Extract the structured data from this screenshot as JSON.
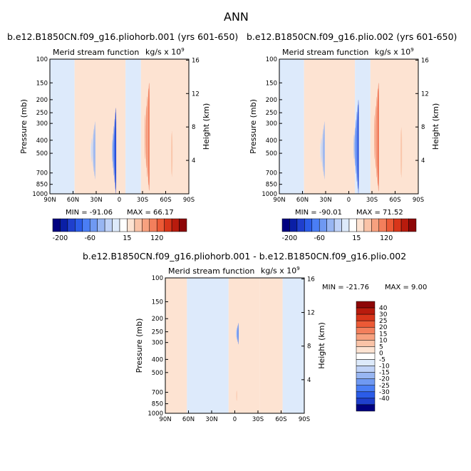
{
  "chart_data": [
    {
      "type": "heatmap",
      "panel": "top-left",
      "title": "b.e12.B1850CN.f09_g16.pliohorb.001 (yrs 601-650)",
      "variable": "Merid stream function",
      "units": "kg/s x 10",
      "units_exp": "9",
      "xlabel": "",
      "ylabel": "Pressure (mb)",
      "y2label": "Height (km)",
      "x_ticks": [
        "90N",
        "60N",
        "30N",
        "0",
        "30S",
        "60S",
        "90S"
      ],
      "y_ticks": [
        "100",
        "150",
        "200",
        "250",
        "300",
        "400",
        "500",
        "700",
        "850",
        "1000"
      ],
      "y2_ticks": [
        "16",
        "12",
        "8",
        "4"
      ],
      "min_label": "MIN = -91.06",
      "max_label": "MAX = 66.17",
      "min": -91.06,
      "max": 66.17,
      "cells": [
        {
          "lat": [
            5,
            16
          ],
          "p": [
            230,
            1000
          ],
          "level": -90
        },
        {
          "lat": [
            -38,
            -22
          ],
          "p": [
            150,
            950
          ],
          "level": 60
        },
        {
          "lat": [
            32,
            45
          ],
          "p": [
            290,
            780
          ],
          "level": -20
        },
        {
          "lat": [
            -68,
            -52
          ],
          "p": [
            340,
            750
          ],
          "level": 12
        }
      ]
    },
    {
      "type": "heatmap",
      "panel": "top-right",
      "title": "b.e12.B1850CN.f09_g16.plio.002 (yrs 601-650)",
      "variable": "Merid stream function",
      "units": "kg/s x 10",
      "units_exp": "9",
      "xlabel": "",
      "ylabel": "Pressure (mb)",
      "y2label": "Height (km)",
      "x_ticks": [
        "90N",
        "60N",
        "30N",
        "0",
        "30S",
        "60S",
        "90S"
      ],
      "y_ticks": [
        "100",
        "150",
        "200",
        "250",
        "300",
        "400",
        "500",
        "700",
        "850",
        "1000"
      ],
      "y2_ticks": [
        "16",
        "12",
        "8",
        "4"
      ],
      "min_label": "MIN = -90.01",
      "max_label": "MAX = 71.52",
      "min": -90.01,
      "max": 71.52,
      "cells": [
        {
          "lat": [
            -12,
            2
          ],
          "p": [
            200,
            1000
          ],
          "level": -90
        },
        {
          "lat": [
            -38,
            -22
          ],
          "p": [
            150,
            960
          ],
          "level": 70
        },
        {
          "lat": [
            32,
            45
          ],
          "p": [
            290,
            780
          ],
          "level": -20
        },
        {
          "lat": [
            -68,
            -52
          ],
          "p": [
            320,
            760
          ],
          "level": 14
        }
      ]
    },
    {
      "type": "heatmap",
      "panel": "bottom",
      "title": "b.e12.B1850CN.f09_g16.pliohorb.001 - b.e12.B1850CN.f09_g16.plio.002",
      "variable": "Merid stream function",
      "units": "kg/s x 10",
      "units_exp": "9",
      "xlabel": "",
      "ylabel": "Pressure (mb)",
      "y2label": "Height (km)",
      "x_ticks": [
        "90N",
        "60N",
        "30N",
        "0",
        "30S",
        "60S",
        "90S"
      ],
      "y_ticks": [
        "100",
        "150",
        "200",
        "250",
        "300",
        "400",
        "500",
        "700",
        "850",
        "1000"
      ],
      "y2_ticks": [
        "16",
        "12",
        "8",
        "4"
      ],
      "min_label": "MIN = -21.76",
      "max_label": "MAX =   9.00",
      "min": -21.76,
      "max": 9.0,
      "cells": [
        {
          "lat": [
            -4,
            3
          ],
          "p": [
            215,
            310
          ],
          "level": -21
        },
        {
          "lat": [
            -2,
            2
          ],
          "p": [
            680,
            810
          ],
          "level": 5
        }
      ]
    }
  ],
  "page": {
    "title": "ANN"
  },
  "colorbars": {
    "shared": {
      "orientation": "horizontal",
      "labels": [
        "-200",
        "-60",
        "15",
        "120"
      ],
      "colors": [
        "#000080",
        "#0a1fa6",
        "#1f3fcd",
        "#2b5ce8",
        "#4a7ef5",
        "#6f99f2",
        "#98b6f2",
        "#bfd2f7",
        "#ddeafb",
        "#ffffff",
        "#fde3d2",
        "#fac3a7",
        "#f7a17f",
        "#f37f5c",
        "#ec5a36",
        "#d8351a",
        "#b81b0d",
        "#8d0607"
      ]
    },
    "diff": {
      "orientation": "vertical",
      "labels": [
        "40",
        "30",
        "25",
        "20",
        "15",
        "10",
        "5",
        "0",
        "-5",
        "-10",
        "-15",
        "-20",
        "-25",
        "-30",
        "-40"
      ],
      "colors": [
        "#8d0607",
        "#b81b0d",
        "#d8351a",
        "#ec5a36",
        "#f37f5c",
        "#f7a17f",
        "#fac3a7",
        "#fde3d2",
        "#ffffff",
        "#ddeafb",
        "#bfd2f7",
        "#98b6f2",
        "#6f99f2",
        "#4a7ef5",
        "#2b5ce8",
        "#1f3fcd",
        "#000080"
      ]
    }
  }
}
